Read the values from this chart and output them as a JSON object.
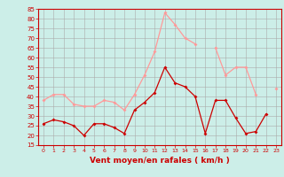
{
  "x": [
    0,
    1,
    2,
    3,
    4,
    5,
    6,
    7,
    8,
    9,
    10,
    11,
    12,
    13,
    14,
    15,
    16,
    17,
    18,
    19,
    20,
    21,
    22,
    23
  ],
  "avg_wind": [
    26,
    28,
    27,
    25,
    20,
    26,
    26,
    24,
    21,
    33,
    37,
    42,
    55,
    47,
    45,
    40,
    21,
    38,
    38,
    29,
    21,
    22,
    31,
    null
  ],
  "gust_wind": [
    38,
    41,
    41,
    36,
    35,
    35,
    38,
    37,
    33,
    41,
    51,
    63,
    83,
    77,
    70,
    67,
    null,
    65,
    51,
    55,
    55,
    41,
    null,
    44
  ],
  "bg_color": "#cceee8",
  "avg_color": "#cc0000",
  "gust_color": "#ff9999",
  "grid_color": "#aaaaaa",
  "xlabel": "Vent moyen/en rafales ( km/h )",
  "xlabel_color": "#cc0000",
  "tick_color": "#cc0000",
  "spine_color": "#cc0000",
  "ylim": [
    15,
    85
  ],
  "yticks": [
    15,
    20,
    25,
    30,
    35,
    40,
    45,
    50,
    55,
    60,
    65,
    70,
    75,
    80,
    85
  ],
  "xticks": [
    0,
    1,
    2,
    3,
    4,
    5,
    6,
    7,
    8,
    9,
    10,
    11,
    12,
    13,
    14,
    15,
    16,
    17,
    18,
    19,
    20,
    21,
    22,
    23
  ]
}
